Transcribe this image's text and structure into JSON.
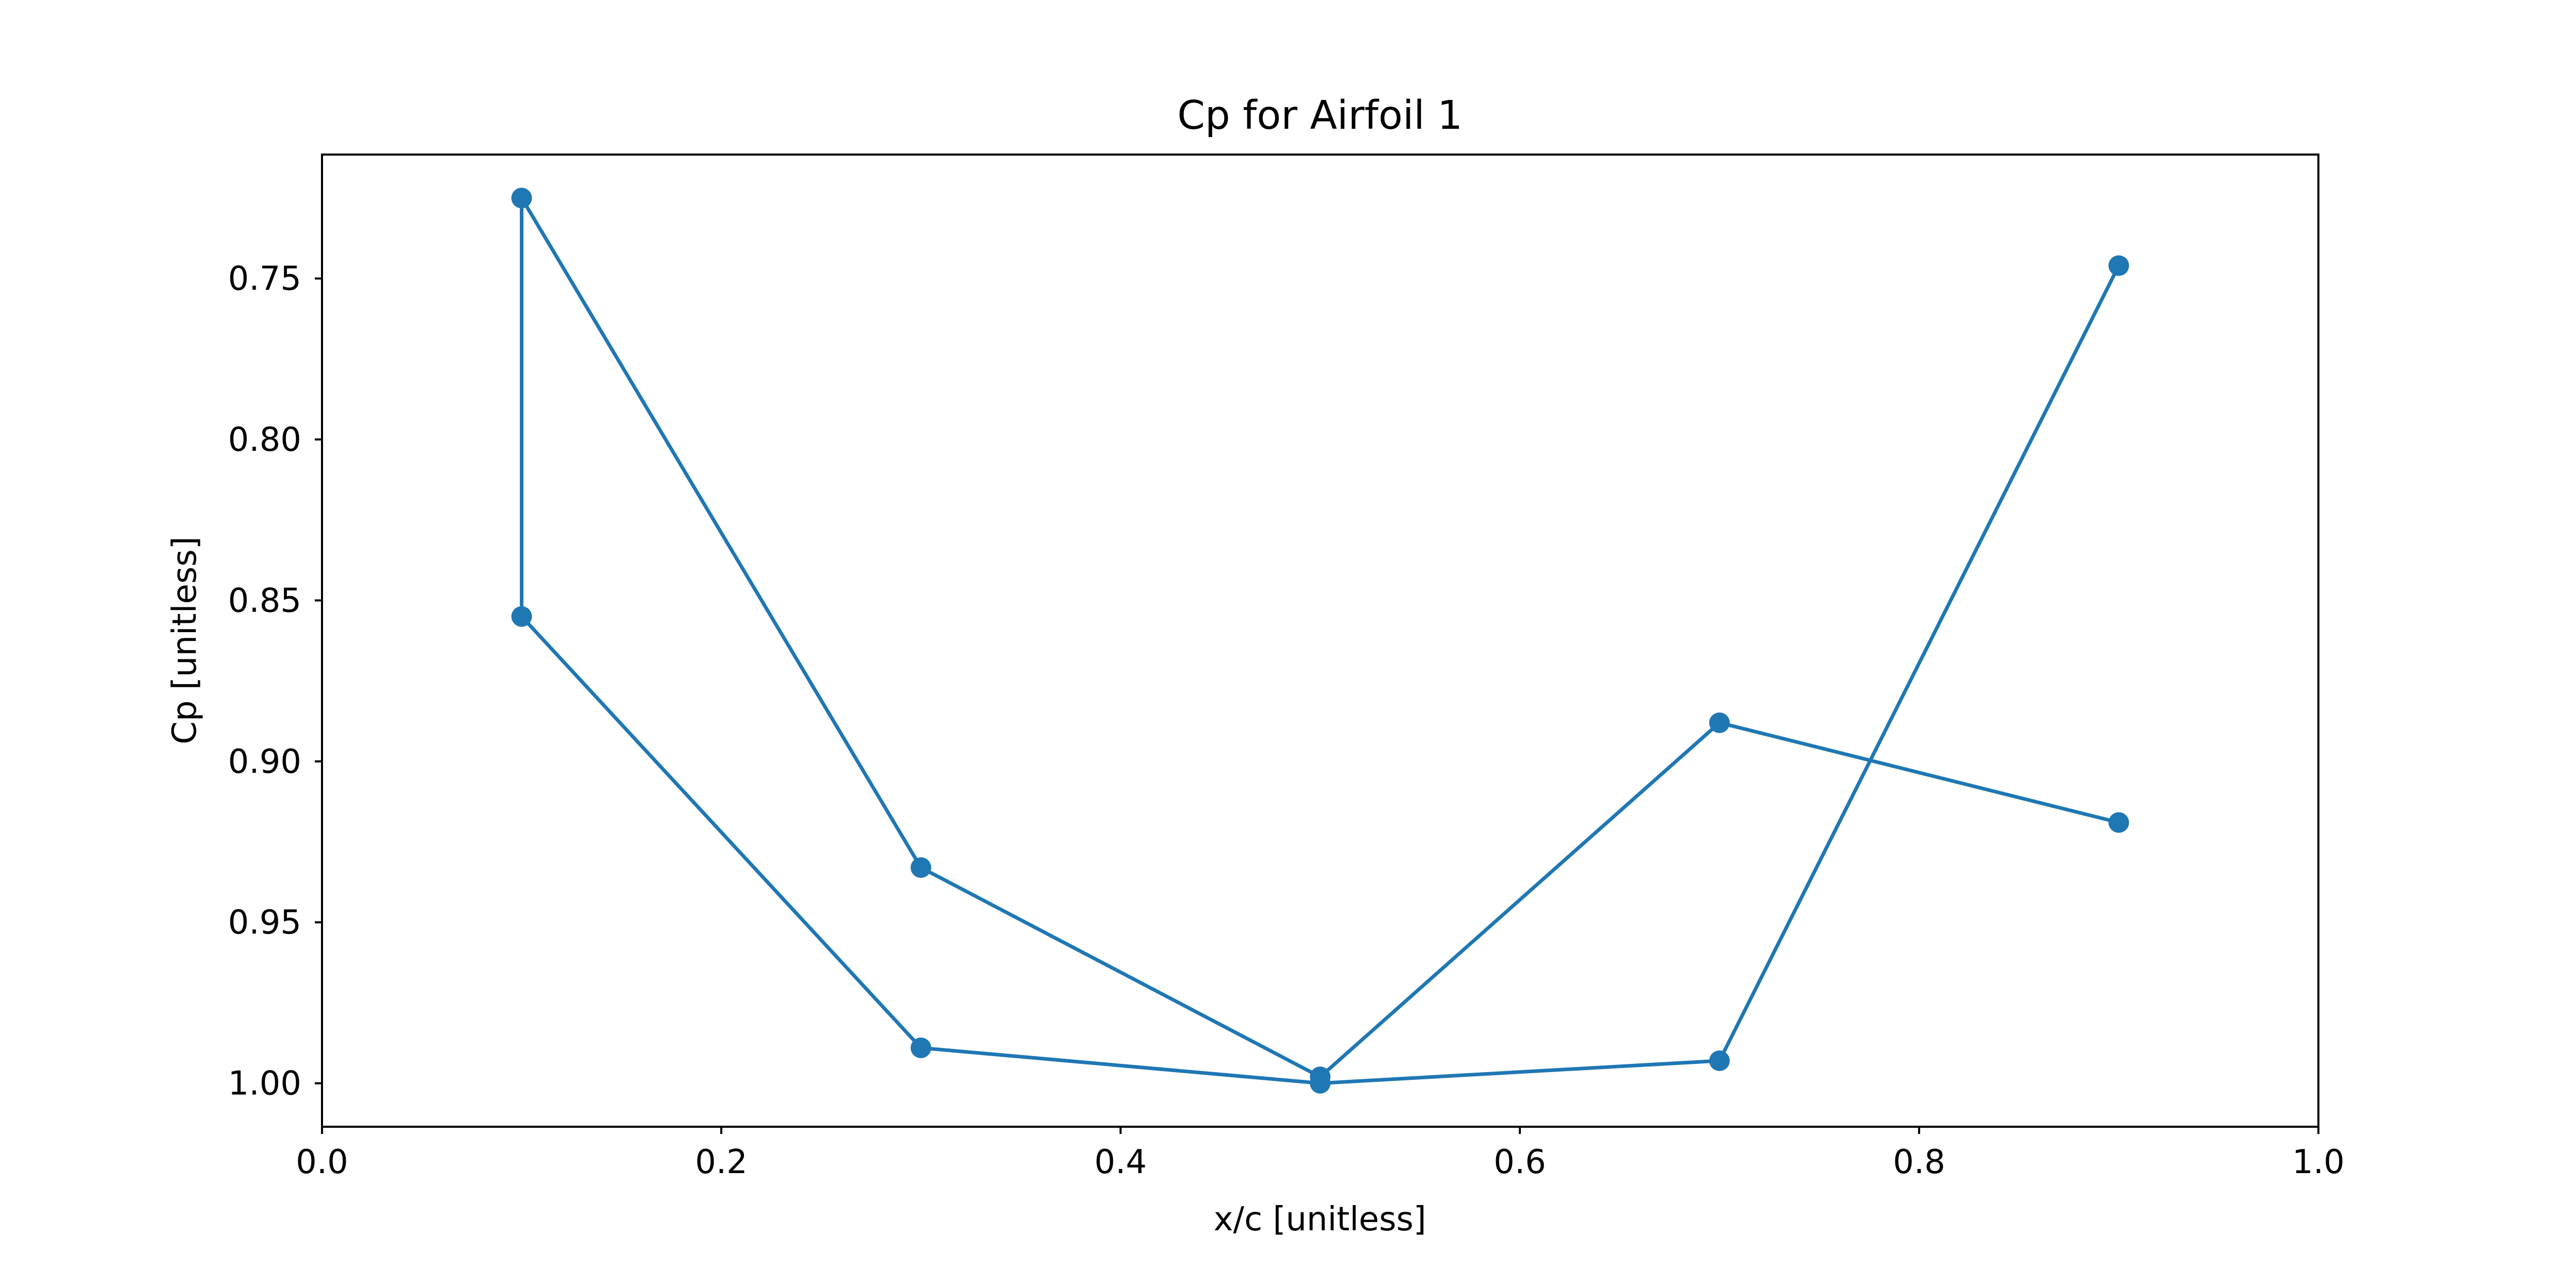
{
  "chart_data": {
    "type": "line",
    "title": "Cp for Airfoil 1",
    "xlabel": "x/c [unitless]",
    "ylabel": "Cp [unitless]",
    "xlim": [
      0.0,
      1.0
    ],
    "ylim": [
      1.0135,
      0.7115
    ],
    "y_inverted": true,
    "grid": false,
    "color": "#1f77b4",
    "marker": "circle",
    "x_ticks": [
      {
        "value": 0.0,
        "label": "0.0"
      },
      {
        "value": 0.2,
        "label": "0.2"
      },
      {
        "value": 0.4,
        "label": "0.4"
      },
      {
        "value": 0.6,
        "label": "0.6"
      },
      {
        "value": 0.8,
        "label": "0.8"
      },
      {
        "value": 1.0,
        "label": "1.0"
      }
    ],
    "y_ticks": [
      {
        "value": 0.75,
        "label": "0.75"
      },
      {
        "value": 0.8,
        "label": "0.80"
      },
      {
        "value": 0.85,
        "label": "0.85"
      },
      {
        "value": 0.9,
        "label": "0.90"
      },
      {
        "value": 0.95,
        "label": "0.95"
      },
      {
        "value": 1.0,
        "label": "1.00"
      }
    ],
    "series": [
      {
        "x": [
          0.9,
          0.7,
          0.5,
          0.3,
          0.1,
          0.1,
          0.3,
          0.5,
          0.7,
          0.9
        ],
        "y": [
          0.746,
          0.993,
          1.0,
          0.989,
          0.855,
          0.725,
          0.933,
          0.998,
          0.888,
          0.919
        ]
      }
    ]
  }
}
